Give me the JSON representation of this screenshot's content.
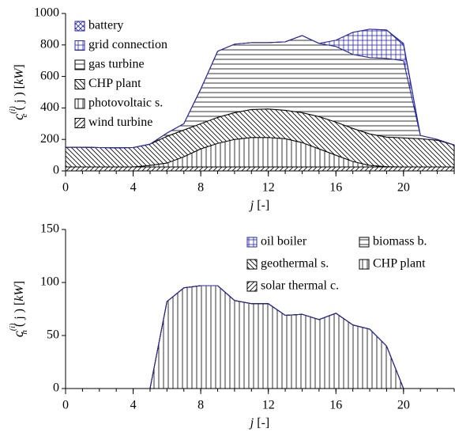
{
  "chart_data": [
    {
      "type": "area",
      "stacked": true,
      "ylabel": {
        "symbol": "c",
        "sup": "(i)",
        "sub": "e",
        "arg": "( j ) [",
        "unit": "kW",
        "close": "]"
      },
      "xlabel": {
        "var": "j",
        "unit": "[-]"
      },
      "x": [
        0,
        1,
        2,
        3,
        4,
        5,
        6,
        7,
        8,
        9,
        10,
        11,
        12,
        13,
        14,
        15,
        16,
        17,
        18,
        19,
        20,
        21,
        22,
        23
      ],
      "xlim": [
        0,
        23
      ],
      "xticks": [
        0,
        4,
        8,
        12,
        16,
        20
      ],
      "ylim": [
        0,
        1000
      ],
      "yticks": [
        0,
        200,
        400,
        600,
        800,
        1000
      ],
      "legend": "upper left",
      "legend_columns": 1,
      "series": [
        {
          "name": "wind turbine",
          "color": "#000000",
          "hatch": "/",
          "values": [
            25,
            25,
            25,
            25,
            25,
            25,
            25,
            25,
            25,
            25,
            25,
            25,
            25,
            25,
            25,
            25,
            25,
            25,
            25,
            25,
            25,
            25,
            25,
            25
          ]
        },
        {
          "name": "photovoltaic s.",
          "color": "#000000",
          "hatch": "|",
          "values": [
            0,
            0,
            0,
            0,
            0,
            10,
            25,
            65,
            115,
            150,
            175,
            187,
            187,
            180,
            155,
            115,
            75,
            35,
            10,
            2,
            0,
            0,
            0,
            0
          ]
        },
        {
          "name": "CHP plant",
          "color": "#000000",
          "hatch": "\\",
          "values": [
            125,
            125,
            123,
            122,
            123,
            135,
            170,
            170,
            160,
            165,
            170,
            178,
            181,
            180,
            190,
            205,
            210,
            210,
            200,
            188,
            185,
            180,
            170,
            140
          ]
        },
        {
          "name": "gas turbine",
          "color": "#000000",
          "hatch": "-",
          "values": [
            0,
            0,
            0,
            0,
            0,
            0,
            20,
            40,
            220,
            420,
            435,
            425,
            422,
            435,
            490,
            465,
            480,
            470,
            485,
            500,
            490,
            20,
            5,
            0
          ]
        },
        {
          "name": "grid connection",
          "color": "#2a2aa0",
          "hatch": "+",
          "values": [
            0,
            0,
            0,
            0,
            0,
            0,
            0,
            0,
            0,
            0,
            0,
            0,
            0,
            0,
            0,
            0,
            40,
            140,
            180,
            180,
            100,
            0,
            0,
            0
          ]
        },
        {
          "name": "battery",
          "color": "#2a2aa0",
          "hatch": "x",
          "values": [
            0,
            0,
            0,
            0,
            0,
            0,
            0,
            0,
            0,
            0,
            0,
            0,
            0,
            0,
            0,
            0,
            0,
            0,
            0,
            0,
            10,
            0,
            0,
            0
          ]
        }
      ]
    },
    {
      "type": "area",
      "stacked": true,
      "ylabel": {
        "symbol": "c",
        "sup": "(i)",
        "sub": "h",
        "arg": "( j ) [",
        "unit": "kW",
        "close": "]"
      },
      "xlabel": {
        "var": "j",
        "unit": "[-]"
      },
      "x": [
        0,
        1,
        2,
        3,
        4,
        5,
        6,
        7,
        8,
        9,
        10,
        11,
        12,
        13,
        14,
        15,
        16,
        17,
        18,
        19,
        20,
        21,
        22,
        23
      ],
      "xlim": [
        0,
        23
      ],
      "xticks": [
        0,
        4,
        8,
        12,
        16,
        20
      ],
      "ylim": [
        0,
        150
      ],
      "yticks": [
        0,
        50,
        100,
        150
      ],
      "legend": "upper right",
      "legend_columns": 2,
      "series": [
        {
          "name": "solar thermal c.",
          "color": "#000000",
          "hatch": "/",
          "values": [
            0,
            0,
            0,
            0,
            0,
            0,
            0,
            0,
            0,
            0,
            0,
            0,
            0,
            0,
            0,
            0,
            0,
            0,
            0,
            0,
            0,
            0,
            0,
            0
          ]
        },
        {
          "name": "CHP plant",
          "color": "#000000",
          "hatch": "|",
          "values": [
            0,
            0,
            0,
            0,
            0,
            0,
            82,
            95,
            97,
            97,
            83,
            80,
            80,
            69,
            70,
            65,
            71,
            60,
            56,
            40,
            0,
            0,
            0,
            0
          ]
        },
        {
          "name": "geothermal s.",
          "color": "#000000",
          "hatch": "\\",
          "values": [
            0,
            0,
            0,
            0,
            0,
            0,
            0,
            0,
            0,
            0,
            0,
            0,
            0,
            0,
            0,
            0,
            0,
            0,
            0,
            0,
            0,
            0,
            0,
            0
          ]
        },
        {
          "name": "biomass b.",
          "color": "#000000",
          "hatch": "-",
          "values": [
            0,
            0,
            0,
            0,
            0,
            0,
            0,
            0,
            0,
            0,
            0,
            0,
            0,
            0,
            0,
            0,
            0,
            0,
            0,
            0,
            0,
            0,
            0,
            0
          ]
        },
        {
          "name": "oil boiler",
          "color": "#2a2aa0",
          "hatch": "+",
          "values": [
            0,
            0,
            0,
            0,
            0,
            0,
            0,
            0,
            0,
            0,
            0,
            0,
            0,
            0,
            0,
            0,
            0,
            0,
            0,
            0,
            0,
            0,
            0,
            0
          ]
        }
      ]
    }
  ]
}
